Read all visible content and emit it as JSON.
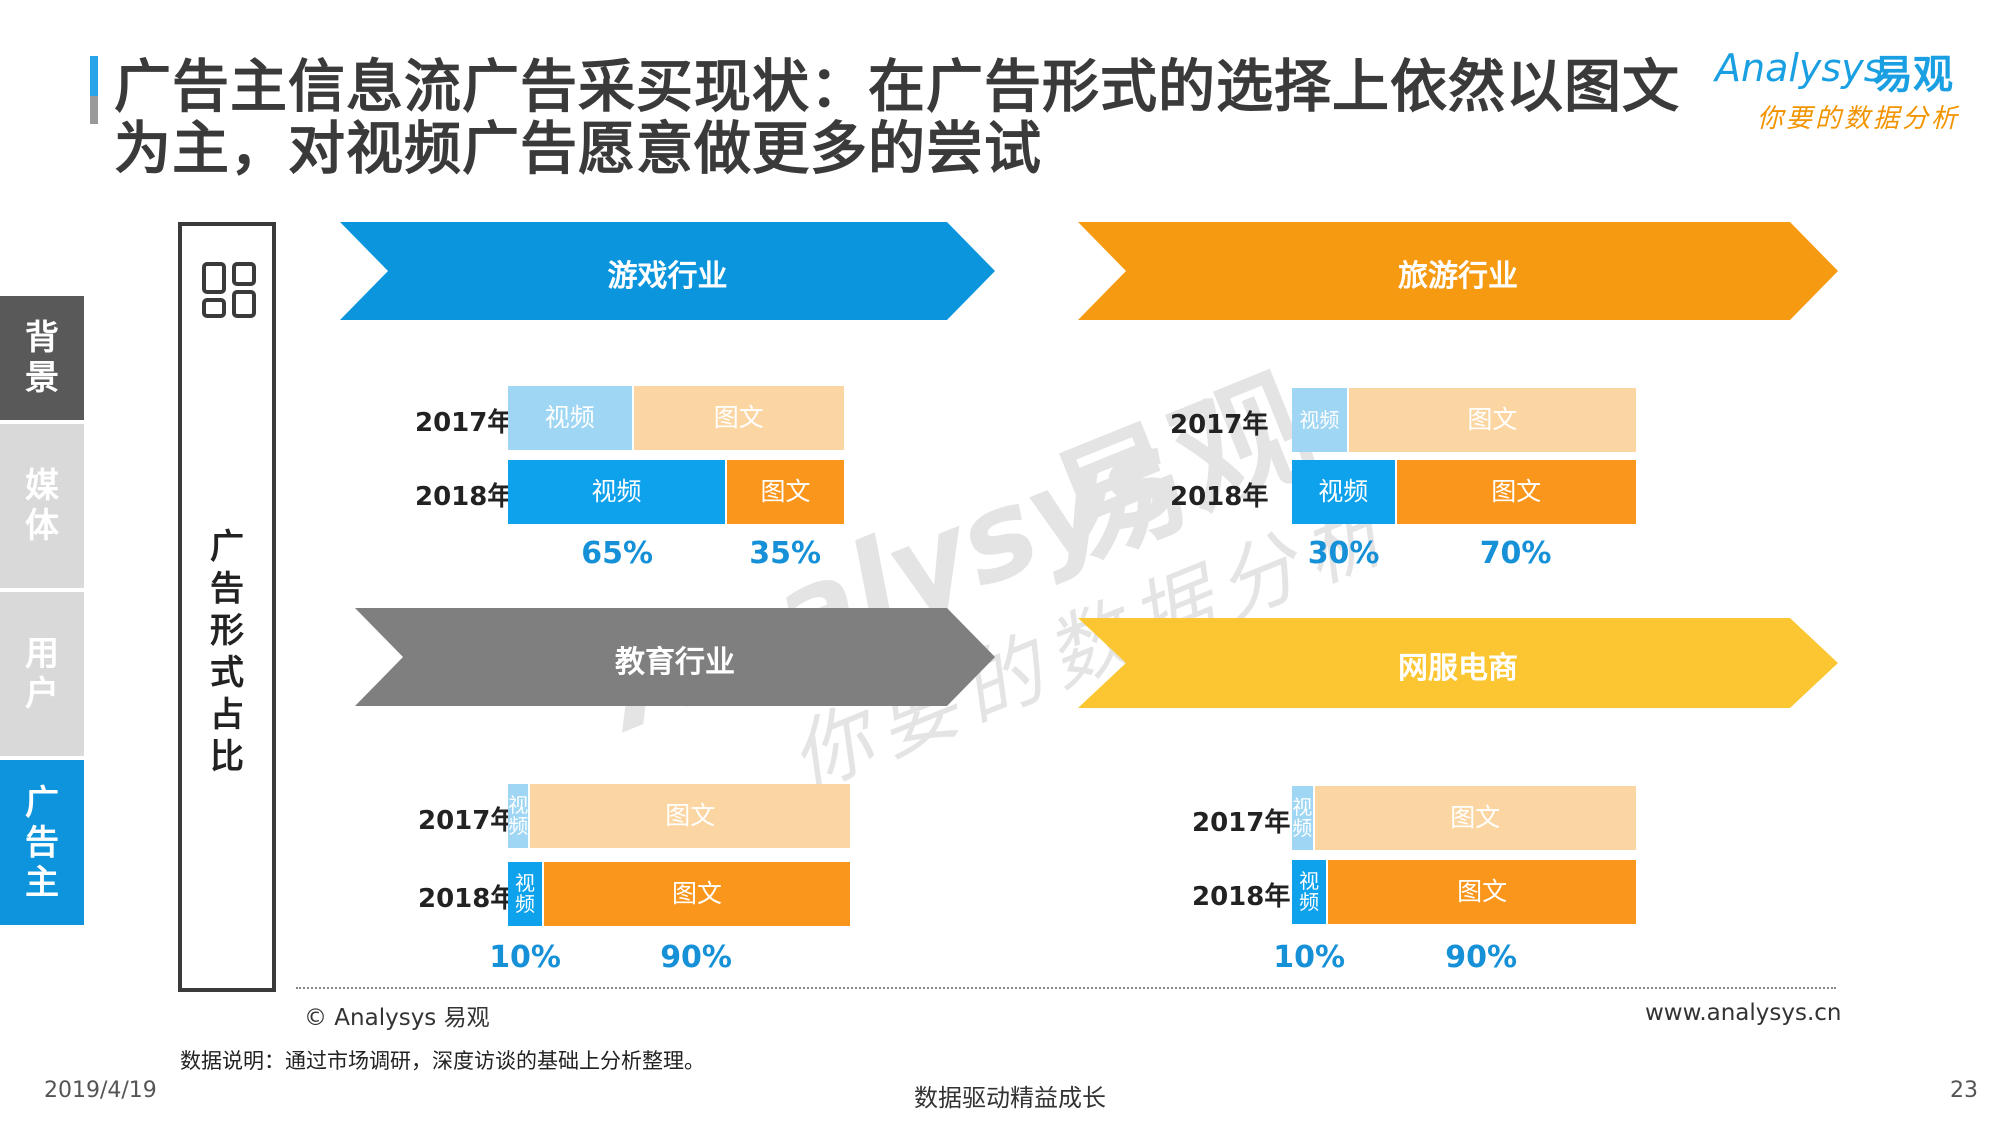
{
  "header": {
    "title": "广告主信息流广告采买现状：在广告形式的选择上依然以图文为主，对视频广告愿意做更多的尝试",
    "logo_en": "Analysys",
    "logo_cn": "易观",
    "logo_slogan": "你要的数据分析"
  },
  "sidebar": {
    "tabs": [
      {
        "label": "背景"
      },
      {
        "label": "媒体"
      },
      {
        "label": "用户"
      },
      {
        "label": "广告主"
      }
    ]
  },
  "left_label": "广告形式占比",
  "watermark": {
    "en": "Analysys",
    "cn": "易观",
    "slogan": "你要的数据分析"
  },
  "colors": {
    "blue_arrow": "#0a95dc",
    "orange_arrow": "#f69a12",
    "grey_arrow": "#7f7f7f",
    "yellow_arrow": "#fbc631",
    "video_2017": "#9fd6f3",
    "text_2017": "#fcd6a2",
    "video_2018": "#0fa2ec",
    "text_2018": "#f9961b",
    "pct": "#1691d8"
  },
  "chart_data": [
    {
      "type": "bar",
      "title": "游戏行业",
      "categories": [
        "2017年",
        "2018年"
      ],
      "series": [
        {
          "name": "视频",
          "values": [
            37,
            65
          ]
        },
        {
          "name": "图文",
          "values": [
            63,
            35
          ]
        }
      ],
      "labels_2018": [
        "65%",
        "35%"
      ],
      "segment_labels": [
        "视频",
        "图文"
      ]
    },
    {
      "type": "bar",
      "title": "旅游行业",
      "categories": [
        "2017年",
        "2018年"
      ],
      "series": [
        {
          "name": "视频",
          "values": [
            16,
            30
          ]
        },
        {
          "name": "图文",
          "values": [
            84,
            70
          ]
        }
      ],
      "labels_2018": [
        "30%",
        "70%"
      ],
      "segment_labels": [
        "视频",
        "图文"
      ]
    },
    {
      "type": "bar",
      "title": "教育行业",
      "categories": [
        "2017年",
        "2018年"
      ],
      "series": [
        {
          "name": "视频",
          "values": [
            6,
            10
          ]
        },
        {
          "name": "图文",
          "values": [
            94,
            90
          ]
        }
      ],
      "labels_2018": [
        "10%",
        "90%"
      ],
      "segment_labels": [
        "视频",
        "图文"
      ]
    },
    {
      "type": "bar",
      "title": "网服电商",
      "categories": [
        "2017年",
        "2018年"
      ],
      "series": [
        {
          "name": "视频",
          "values": [
            6,
            10
          ]
        },
        {
          "name": "图文",
          "values": [
            94,
            90
          ]
        }
      ],
      "labels_2018": [
        "10%",
        "90%"
      ],
      "segment_labels": [
        "视频",
        "图文"
      ]
    }
  ],
  "footer": {
    "copyright": "© Analysys 易观",
    "website": "www.analysys.cn",
    "data_note": "数据说明：通过市场调研，深度访谈的基础上分析整理。",
    "date": "2019/4/19",
    "slogan": "数据驱动精益成长",
    "page": "23"
  }
}
